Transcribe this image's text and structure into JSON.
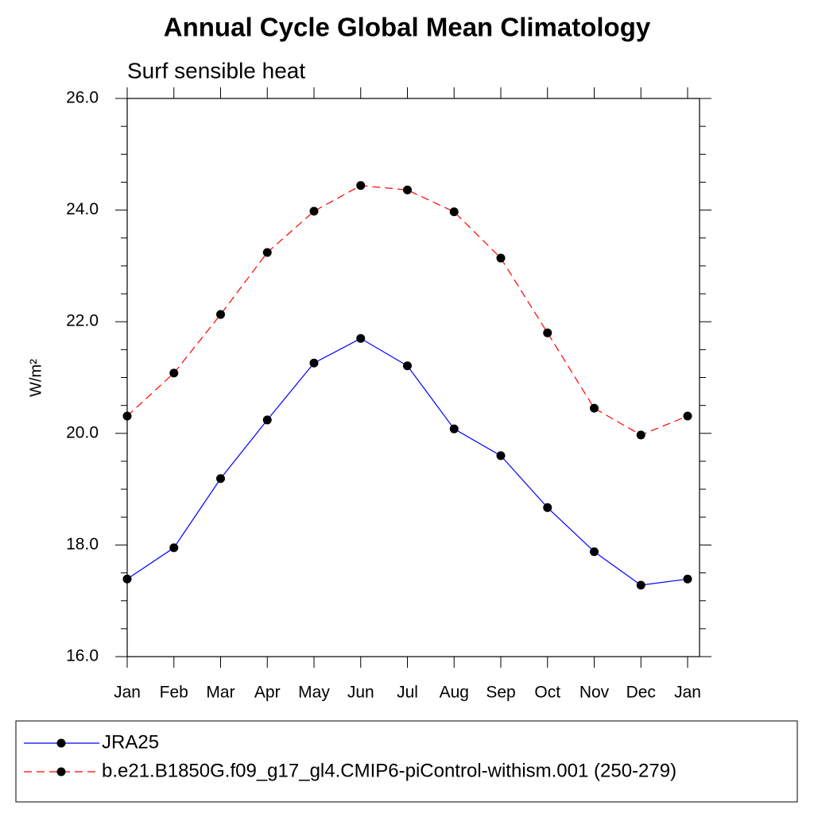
{
  "chart_data": {
    "type": "line",
    "title": "Annual Cycle Global Mean Climatology",
    "subtitle": "Surf sensible heat",
    "ylabel": "W/m²",
    "categories": [
      "Jan",
      "Feb",
      "Mar",
      "Apr",
      "May",
      "Jun",
      "Jul",
      "Aug",
      "Sep",
      "Oct",
      "Nov",
      "Dec",
      "Jan"
    ],
    "series": [
      {
        "name": "JRA25",
        "color": "#0000ff",
        "dash": false,
        "values": [
          17.39,
          17.95,
          19.19,
          20.24,
          21.26,
          21.7,
          21.21,
          20.08,
          19.6,
          18.67,
          17.88,
          17.28,
          17.39
        ]
      },
      {
        "name": "b.e21.B1850G.f09_g17_gl4.CMIP6-piControl-withism.001 (250-279)",
        "color": "#ff0000",
        "dash": true,
        "values": [
          20.31,
          21.08,
          22.13,
          23.24,
          23.98,
          24.44,
          24.36,
          23.97,
          23.14,
          21.8,
          20.45,
          19.97,
          20.31
        ]
      }
    ],
    "ylim": [
      16,
      26
    ],
    "yticks": [
      {
        "value": 16,
        "label": "16.0"
      },
      {
        "value": 18,
        "label": "18.0"
      },
      {
        "value": 20,
        "label": "20.0"
      },
      {
        "value": 22,
        "label": "22.0"
      },
      {
        "value": 24,
        "label": "24.0"
      },
      {
        "value": 26,
        "label": "26.0"
      }
    ],
    "grid": false
  }
}
